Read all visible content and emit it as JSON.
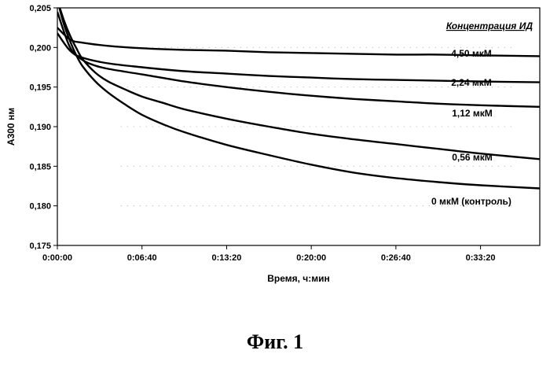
{
  "chart_data": {
    "type": "line",
    "xlabel": "Время, ч:мин",
    "ylabel": "А300 нм",
    "ylim": [
      0.175,
      0.205
    ],
    "yticks": [
      0.175,
      0.18,
      0.185,
      0.19,
      0.195,
      0.2,
      0.205
    ],
    "ytick_labels": [
      "0,175",
      "0,180",
      "0,185",
      "0,190",
      "0,195",
      "0,200",
      "0,205"
    ],
    "xlim": [
      0,
      2280
    ],
    "xticks": [
      0,
      400,
      800,
      1200,
      1600,
      2000
    ],
    "xtick_labels": [
      "0:00:00",
      "0:06:40",
      "0:13:20",
      "0:20:00",
      "0:26:40",
      "0:33:20"
    ],
    "grid": false,
    "legend_title": "Концентрация ИД",
    "series": [
      {
        "name": "4,50 мкМ",
        "x": [
          0,
          60,
          120,
          240,
          400,
          600,
          800,
          1000,
          1200,
          1400,
          1600,
          1800,
          2000,
          2280
        ],
        "y": [
          0.2025,
          0.201,
          0.2006,
          0.2002,
          0.1999,
          0.1997,
          0.1996,
          0.1994,
          0.1993,
          0.1992,
          0.1991,
          0.1991,
          0.199,
          0.1989
        ]
      },
      {
        "name": "2,24 мкМ",
        "x": [
          0,
          60,
          120,
          240,
          400,
          600,
          800,
          1000,
          1200,
          1400,
          1600,
          1800,
          2000,
          2280
        ],
        "y": [
          0.2018,
          0.1996,
          0.1987,
          0.198,
          0.1975,
          0.197,
          0.1967,
          0.1964,
          0.1962,
          0.196,
          0.1959,
          0.1958,
          0.1957,
          0.1956
        ]
      },
      {
        "name": "1,12 мкМ",
        "x": [
          0,
          60,
          120,
          180,
          240,
          400,
          600,
          800,
          1000,
          1200,
          1400,
          1600,
          1800,
          2000,
          2280
        ],
        "y": [
          0.2045,
          0.2,
          0.1984,
          0.1977,
          0.1973,
          0.1966,
          0.1957,
          0.195,
          0.1944,
          0.1939,
          0.1935,
          0.1932,
          0.1929,
          0.1927,
          0.1925
        ]
      },
      {
        "name": "0,56 мкМ",
        "x": [
          0,
          30,
          60,
          90,
          120,
          180,
          240,
          320,
          400,
          500,
          600,
          800,
          1000,
          1200,
          1400,
          1600,
          1800,
          2000,
          2280
        ],
        "y": [
          0.206,
          0.2035,
          0.2015,
          0.1999,
          0.1985,
          0.1968,
          0.1957,
          0.1947,
          0.1938,
          0.193,
          0.1922,
          0.191,
          0.19,
          0.1891,
          0.1884,
          0.1878,
          0.1872,
          0.1866,
          0.1859
        ]
      },
      {
        "name": "0 мкМ (контроль)",
        "x": [
          0,
          30,
          60,
          90,
          120,
          180,
          240,
          320,
          400,
          500,
          600,
          800,
          1000,
          1200,
          1400,
          1600,
          1800,
          2000,
          2280
        ],
        "y": [
          0.206,
          0.203,
          0.2008,
          0.199,
          0.1976,
          0.1957,
          0.1943,
          0.1928,
          0.1915,
          0.1903,
          0.1893,
          0.1877,
          0.1864,
          0.1852,
          0.1842,
          0.1835,
          0.183,
          0.1826,
          0.1822
        ]
      }
    ]
  },
  "caption": "Фиг. 1"
}
